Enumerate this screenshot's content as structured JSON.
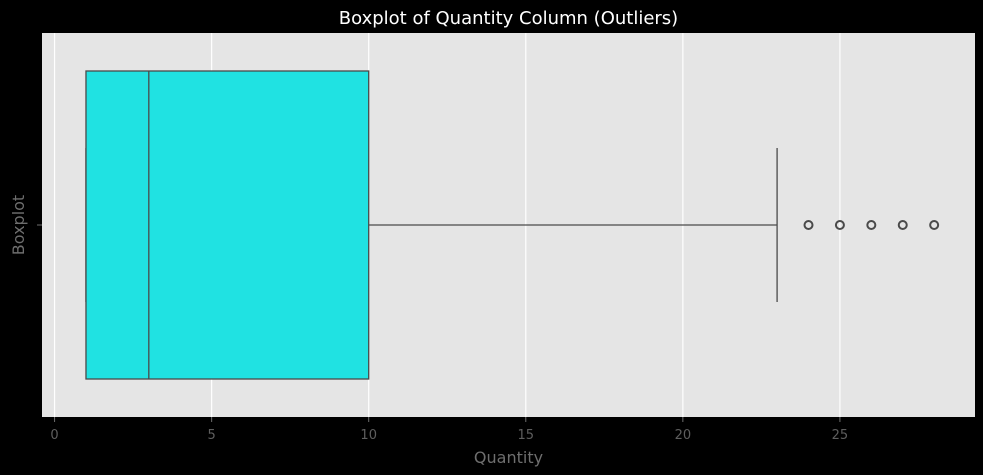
{
  "chart_data": {
    "type": "boxplot",
    "title": "Boxplot of Quantity Column (Outliers)",
    "xlabel": "Quantity",
    "ylabel": "Boxplot",
    "xlim": [
      -0.4,
      29.3
    ],
    "x_ticks": [
      0,
      5,
      10,
      15,
      20,
      25
    ],
    "grid": true,
    "box": {
      "whisker_low": 1,
      "q1": 1,
      "median": 3,
      "q3": 10,
      "whisker_high": 23,
      "outliers": [
        24,
        25,
        26,
        27,
        28
      ]
    },
    "colors": {
      "figure_background": "#000000",
      "plot_background": "#e5e5e5",
      "grid": "#ffffff",
      "box_fill": "#20e2e2",
      "line": "#4a4a4a"
    }
  }
}
